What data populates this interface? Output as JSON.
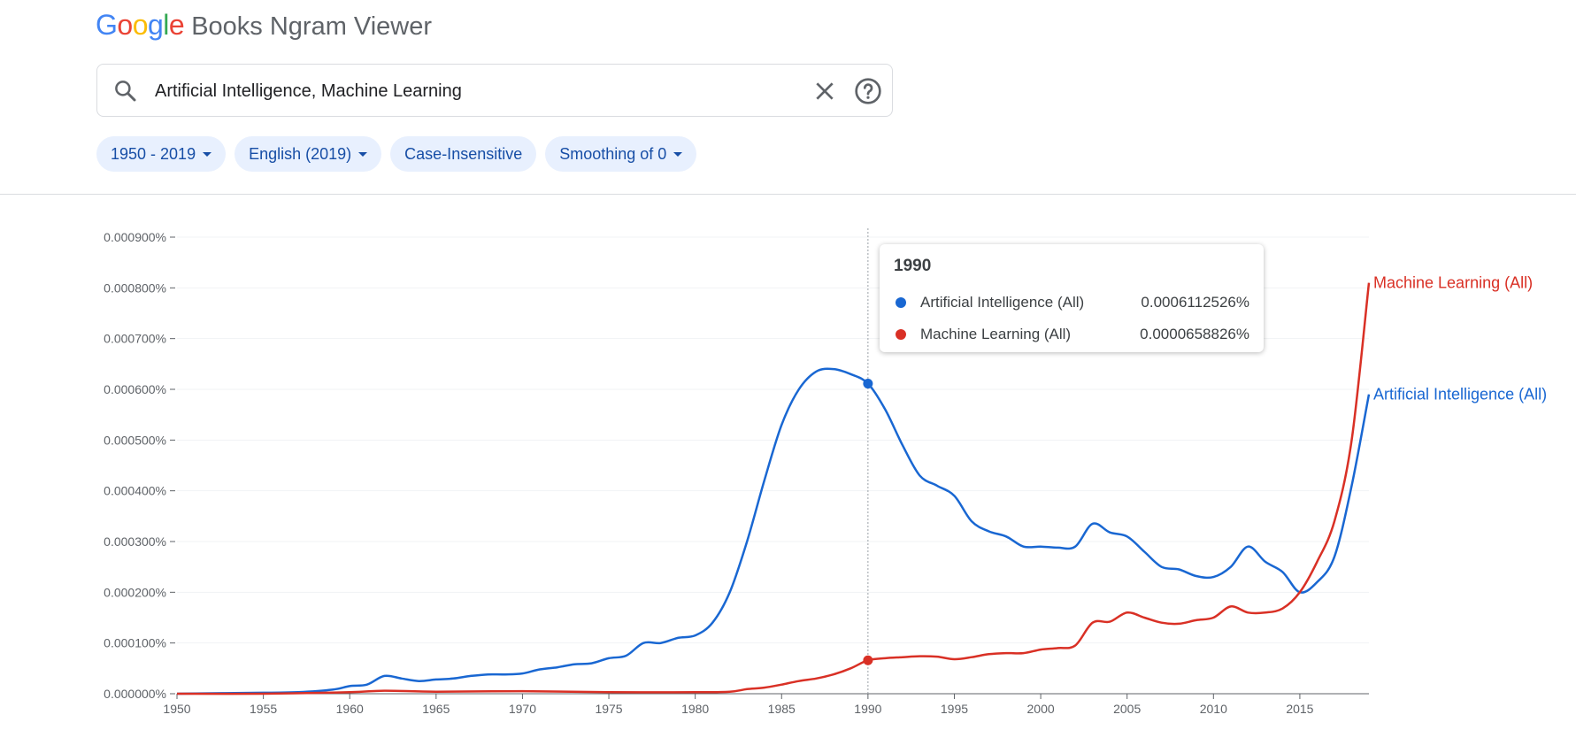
{
  "app": {
    "logo_letters": [
      {
        "ch": "G",
        "color": "#4285F4"
      },
      {
        "ch": "o",
        "color": "#EA4335"
      },
      {
        "ch": "o",
        "color": "#FBBC05"
      },
      {
        "ch": "g",
        "color": "#4285F4"
      },
      {
        "ch": "l",
        "color": "#34A853"
      },
      {
        "ch": "e",
        "color": "#EA4335"
      }
    ],
    "title": "Books Ngram Viewer"
  },
  "search": {
    "value": "Artificial Intelligence, Machine Learning",
    "icons": {
      "search": "search-icon",
      "clear": "close-icon",
      "help": "help-icon"
    }
  },
  "filters": {
    "year_range": "1950 - 2019",
    "corpus": "English (2019)",
    "case": "Case-Insensitive",
    "smoothing": "Smoothing of 0"
  },
  "tooltip": {
    "year": "1990",
    "rows": [
      {
        "name": "Artificial Intelligence (All)",
        "value": "0.0006112526%",
        "color": "#1967d2"
      },
      {
        "name": "Machine Learning (All)",
        "value": "0.0000658826%",
        "color": "#d93025"
      }
    ]
  },
  "chart_data": {
    "type": "line",
    "title": "",
    "xlabel": "",
    "ylabel": "",
    "xlim": [
      1950,
      2019
    ],
    "ylim": [
      0,
      0.0009
    ],
    "x_ticks": [
      1950,
      1955,
      1960,
      1965,
      1970,
      1975,
      1980,
      1985,
      1990,
      1995,
      2000,
      2005,
      2010,
      2015
    ],
    "y_ticks": [
      {
        "value": 0.0,
        "label": "0.000000%"
      },
      {
        "value": 0.0001,
        "label": "0.000100%"
      },
      {
        "value": 0.0002,
        "label": "0.000200%"
      },
      {
        "value": 0.0003,
        "label": "0.000300%"
      },
      {
        "value": 0.0004,
        "label": "0.000400%"
      },
      {
        "value": 0.0005,
        "label": "0.000500%"
      },
      {
        "value": 0.0006,
        "label": "0.000600%"
      },
      {
        "value": 0.0007,
        "label": "0.000700%"
      },
      {
        "value": 0.0008,
        "label": "0.000800%"
      },
      {
        "value": 0.0009,
        "label": "0.000900%"
      }
    ],
    "grid": true,
    "legend": "end-of-line labels",
    "hover_year": 1990,
    "series": [
      {
        "name": "Artificial Intelligence (All)",
        "color": "#1967d2",
        "points": [
          [
            1950,
            0.0
          ],
          [
            1955,
            2e-06
          ],
          [
            1957,
            3e-06
          ],
          [
            1959,
            8e-06
          ],
          [
            1960,
            1.5e-05
          ],
          [
            1961,
            1.8e-05
          ],
          [
            1962,
            3.5e-05
          ],
          [
            1963,
            3e-05
          ],
          [
            1964,
            2.5e-05
          ],
          [
            1965,
            2.8e-05
          ],
          [
            1966,
            3e-05
          ],
          [
            1967,
            3.5e-05
          ],
          [
            1968,
            3.8e-05
          ],
          [
            1969,
            3.8e-05
          ],
          [
            1970,
            4e-05
          ],
          [
            1971,
            4.8e-05
          ],
          [
            1972,
            5.2e-05
          ],
          [
            1973,
            5.8e-05
          ],
          [
            1974,
            6e-05
          ],
          [
            1975,
            7e-05
          ],
          [
            1976,
            7.5e-05
          ],
          [
            1977,
            0.0001
          ],
          [
            1978,
            0.0001
          ],
          [
            1979,
            0.00011
          ],
          [
            1980,
            0.000115
          ],
          [
            1981,
            0.00014
          ],
          [
            1982,
            0.0002
          ],
          [
            1983,
            0.0003
          ],
          [
            1984,
            0.00042
          ],
          [
            1985,
            0.00053
          ],
          [
            1986,
            0.0006
          ],
          [
            1987,
            0.000635
          ],
          [
            1988,
            0.00064
          ],
          [
            1989,
            0.00063
          ],
          [
            1990,
            0.0006112526
          ],
          [
            1991,
            0.00056
          ],
          [
            1992,
            0.00049
          ],
          [
            1993,
            0.00043
          ],
          [
            1994,
            0.00041
          ],
          [
            1995,
            0.00039
          ],
          [
            1996,
            0.00034
          ],
          [
            1997,
            0.00032
          ],
          [
            1998,
            0.00031
          ],
          [
            1999,
            0.00029
          ],
          [
            2000,
            0.00029
          ],
          [
            2001,
            0.000288
          ],
          [
            2002,
            0.00029
          ],
          [
            2003,
            0.000335
          ],
          [
            2004,
            0.000318
          ],
          [
            2005,
            0.00031
          ],
          [
            2006,
            0.00028
          ],
          [
            2007,
            0.00025
          ],
          [
            2008,
            0.000245
          ],
          [
            2009,
            0.000232
          ],
          [
            2010,
            0.00023
          ],
          [
            2011,
            0.00025
          ],
          [
            2012,
            0.00029
          ],
          [
            2013,
            0.00026
          ],
          [
            2014,
            0.00024
          ],
          [
            2015,
            0.0002
          ],
          [
            2016,
            0.00022
          ],
          [
            2017,
            0.00027
          ],
          [
            2018,
            0.00041
          ],
          [
            2019,
            0.00059
          ]
        ]
      },
      {
        "name": "Machine Learning (All)",
        "color": "#d93025",
        "points": [
          [
            1950,
            0.0
          ],
          [
            1955,
            0.0
          ],
          [
            1960,
            3e-06
          ],
          [
            1962,
            6e-06
          ],
          [
            1965,
            4e-06
          ],
          [
            1970,
            5e-06
          ],
          [
            1975,
            3e-06
          ],
          [
            1980,
            3e-06
          ],
          [
            1982,
            4e-06
          ],
          [
            1983,
            9e-06
          ],
          [
            1984,
            1.2e-05
          ],
          [
            1985,
            1.8e-05
          ],
          [
            1986,
            2.5e-05
          ],
          [
            1987,
            3e-05
          ],
          [
            1988,
            3.8e-05
          ],
          [
            1989,
            5e-05
          ],
          [
            1990,
            6.58826e-05
          ],
          [
            1991,
            7e-05
          ],
          [
            1992,
            7.2e-05
          ],
          [
            1993,
            7.4e-05
          ],
          [
            1994,
            7.3e-05
          ],
          [
            1995,
            6.8e-05
          ],
          [
            1996,
            7.2e-05
          ],
          [
            1997,
            7.8e-05
          ],
          [
            1998,
            8e-05
          ],
          [
            1999,
            8e-05
          ],
          [
            2000,
            8.7e-05
          ],
          [
            2001,
            9e-05
          ],
          [
            2002,
            9.5e-05
          ],
          [
            2003,
            0.00014
          ],
          [
            2004,
            0.000142
          ],
          [
            2005,
            0.00016
          ],
          [
            2006,
            0.00015
          ],
          [
            2007,
            0.00014
          ],
          [
            2008,
            0.000138
          ],
          [
            2009,
            0.000145
          ],
          [
            2010,
            0.00015
          ],
          [
            2011,
            0.000172
          ],
          [
            2012,
            0.00016
          ],
          [
            2013,
            0.00016
          ],
          [
            2014,
            0.000168
          ],
          [
            2015,
            0.0002
          ],
          [
            2016,
            0.00026
          ],
          [
            2017,
            0.00034
          ],
          [
            2018,
            0.0005
          ],
          [
            2019,
            0.00081
          ]
        ]
      }
    ]
  }
}
